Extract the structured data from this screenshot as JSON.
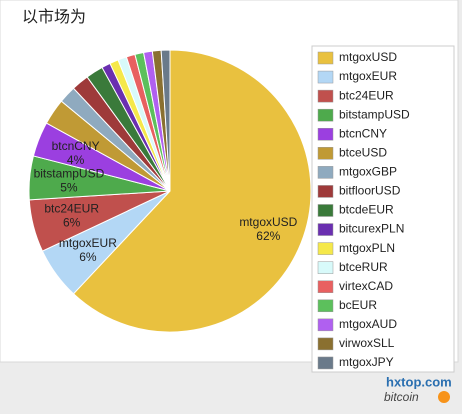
{
  "chart_data": {
    "type": "pie",
    "title": "以市场为",
    "categories": [
      "mtgoxUSD",
      "mtgoxEUR",
      "btc24EUR",
      "bitstampUSD",
      "btcnCNY",
      "btceUSD",
      "mtgoxGBP",
      "bitfloorUSD",
      "btcdeEUR",
      "bitcurexPLN",
      "mtgoxPLN",
      "btceRUR",
      "virtexCAD",
      "bcEUR",
      "mtgoxAUD",
      "virwoxSLL",
      "mtgoxJPY"
    ],
    "values": [
      62,
      6,
      6,
      5,
      4,
      3,
      2,
      2,
      2,
      1,
      1,
      1,
      1,
      1,
      1,
      1,
      1
    ],
    "value_labels": [
      "62%",
      "6%",
      "6%",
      "5%",
      "4%",
      null,
      null,
      null,
      null,
      null,
      null,
      null,
      null,
      null,
      null,
      null,
      null
    ],
    "colors": [
      "#e9c13f",
      "#b3d7f5",
      "#c0504d",
      "#4eaa4c",
      "#9b3fe0",
      "#c09a35",
      "#8faabf",
      "#9e3a3a",
      "#3a7a3a",
      "#6a2fb0",
      "#f5e84a",
      "#d8fafa",
      "#e86060",
      "#5cc05c",
      "#b060f0",
      "#8a7030",
      "#6a7a8a"
    ],
    "legend": "right",
    "watermark": {
      "site": "hxtop.com",
      "brand": "bitcoin"
    }
  }
}
